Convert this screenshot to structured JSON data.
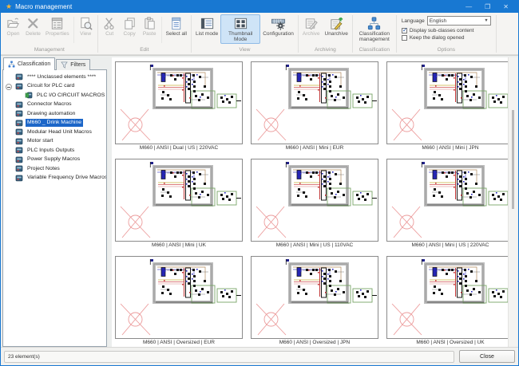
{
  "window": {
    "title": "Macro management"
  },
  "titlebar_controls": {
    "minimize": "—",
    "maximize": "❐",
    "close": "✕"
  },
  "ribbon": {
    "groups": [
      {
        "label": "Management",
        "buttons": [
          {
            "label": "Open",
            "icon": "open",
            "disabled": true
          },
          {
            "label": "Delete",
            "icon": "delete",
            "disabled": true
          },
          {
            "label": "Properties",
            "icon": "properties",
            "disabled": true
          },
          {
            "label": "View",
            "icon": "view",
            "disabled": true,
            "sep_before": true
          }
        ]
      },
      {
        "label": "Edit",
        "buttons": [
          {
            "label": "Cut",
            "icon": "cut",
            "disabled": true
          },
          {
            "label": "Copy",
            "icon": "copy",
            "disabled": true
          },
          {
            "label": "Paste",
            "icon": "paste",
            "disabled": true
          },
          {
            "label": "Select all",
            "icon": "select-all",
            "sep_before": true
          }
        ]
      },
      {
        "label": "View",
        "buttons": [
          {
            "label": "List mode",
            "icon": "list-mode"
          },
          {
            "label": "Thumbnail Mode",
            "icon": "thumbnail-mode",
            "selected": true
          },
          {
            "label": "Configuration",
            "icon": "configuration"
          }
        ]
      },
      {
        "label": "Archiving",
        "buttons": [
          {
            "label": "Archive",
            "icon": "archive",
            "disabled": true
          },
          {
            "label": "Unarchive",
            "icon": "unarchive"
          }
        ]
      },
      {
        "label": "Classification",
        "buttons": [
          {
            "label": "Classification management",
            "icon": "classification"
          }
        ]
      },
      {
        "label": "Options",
        "type": "options",
        "language_label": "Language",
        "language_value": "English",
        "checkboxes": [
          {
            "label": "Display sub-classes content",
            "checked": true
          },
          {
            "label": "Keep the dialog opened",
            "checked": false
          }
        ]
      }
    ]
  },
  "sidebar": {
    "tabs": [
      {
        "label": "Classification",
        "icon": "classification-tab",
        "active": true
      },
      {
        "label": "Filters",
        "icon": "filter",
        "active": false
      }
    ],
    "tree": [
      {
        "label": "**** Unclassed elements ****",
        "level": 1
      },
      {
        "label": "Circuit for PLC card",
        "level": 1,
        "expander": true
      },
      {
        "label": "PLC I/O CIRCUIT MACROS",
        "level": 2,
        "variant": "green"
      },
      {
        "label": "Connector Macros",
        "level": 1
      },
      {
        "label": "Drawing automation",
        "level": 1
      },
      {
        "label": "M660 _ Drink Machine",
        "level": 1,
        "selected": true
      },
      {
        "label": "Modular Head Unit Macros",
        "level": 1
      },
      {
        "label": "Motor start",
        "level": 1
      },
      {
        "label": "PLC Inputs Outputs",
        "level": 1
      },
      {
        "label": "Power Supply Macros",
        "level": 1
      },
      {
        "label": "Project Notes",
        "level": 1
      },
      {
        "label": "Variable Frequency Drive Macros",
        "level": 1
      }
    ]
  },
  "thumbnails": [
    {
      "label": "M660 | ANSI | Dual | US | 220VAC"
    },
    {
      "label": "M660 | ANSI | Mini | EUR"
    },
    {
      "label": "M660 | ANSI | Mini | JPN"
    },
    {
      "label": "M660 | ANSI | Mini | UK"
    },
    {
      "label": "M660 | ANSI | Mini | US | 110VAC"
    },
    {
      "label": "M660 | ANSI | Mini | US | 220VAC"
    },
    {
      "label": "M660 | ANSI | Oversized | EUR"
    },
    {
      "label": "M660 | ANSI | Oversized | JPN"
    },
    {
      "label": "M660 | ANSI | Oversized | UK"
    }
  ],
  "statusbar": {
    "count": "23 element(s)",
    "close_label": "Close"
  },
  "colors": {
    "titlebar": "#1878d2",
    "selection": "#1c66c8",
    "ribbon_selected_bg": "#cfe4f7",
    "ribbon_selected_border": "#8fbbe6",
    "cross_marker": "#ec9c9c",
    "star": "#f6b73c"
  }
}
